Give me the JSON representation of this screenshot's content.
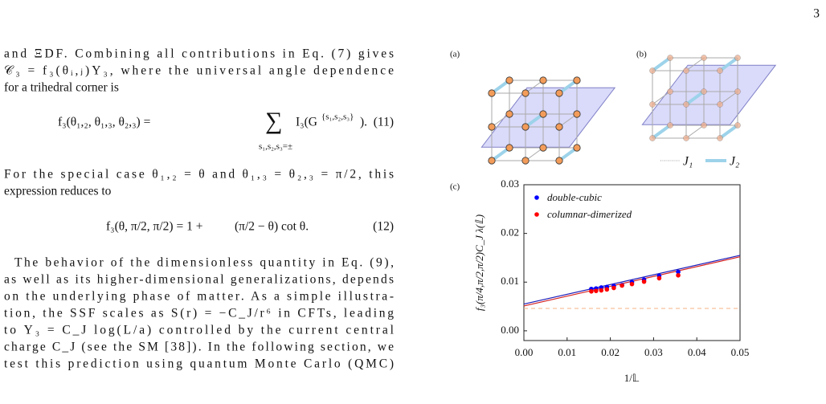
{
  "page_number": "3",
  "text_lines": [
    "and ΞDF. Combining all contributions in Eq. (7) gives",
    "𝒞₃ = f₃(θᵢ,ⱼ)Υ₃, where the universal angle dependence",
    "for a trihedral corner is",
    "For the special case θ₁,₂ = θ and θ₁,₃ = θ₂,₃ = π/2, this",
    "expression reduces to",
    "The behavior of the dimensionless quantity in Eq. (9),",
    "as well as its higher-dimensional generalizations, depends",
    "on the underlying phase of matter. As a simple illustra-",
    "tion, the SSF scales as S(r) = −C_J/r⁶ in CFTs, leading",
    "to Υ₃ = C_J log(L/a) controlled by the current central",
    "charge C_J (see the SM [38]). In the following section, we",
    "test this prediction using quantum Monte Carlo (QMC)"
  ],
  "equations": [
    {
      "lhs": "f₃(θ₁,₂, θ₁,₃, θ₂,₃) =",
      "operator": "∑",
      "under": "s₁,s₂,s₃=±",
      "term": "I₃(G",
      "superscript": "{s₁,s₂,s₃}",
      "tail": ").",
      "number": "(11)"
    },
    {
      "lhs": "f₃(θ, π/2, π/2) = 1 +",
      "term": "(π/2 − θ) cot θ.",
      "number": "(12)"
    }
  ],
  "figure": {
    "panel_labels": [
      "(a)",
      "(b)",
      "(c)"
    ],
    "bond_legend": [
      "J₁",
      "J₂"
    ]
  },
  "chart_data": {
    "type": "scatter",
    "x_label": "1/𝕃",
    "y_label": "f₃(π/4,π/2,π/2)C_J λ(𝕃)",
    "xlim": [
      0,
      0.05
    ],
    "ylim": [
      -0.002,
      0.03
    ],
    "xticks": [
      {
        "value": 0,
        "label": "0.00"
      },
      {
        "value": 0.01,
        "label": "0.01"
      },
      {
        "value": 0.02,
        "label": "0.02"
      },
      {
        "value": 0.03,
        "label": "0.03"
      },
      {
        "value": 0.04,
        "label": "0.04"
      },
      {
        "value": 0.05,
        "label": "0.05"
      }
    ],
    "yticks": [
      {
        "value": 0,
        "label": "0.00"
      },
      {
        "value": 0.01,
        "label": "0.01"
      },
      {
        "value": 0.02,
        "label": "0.02"
      },
      {
        "value": 0.03,
        "label": "0.03"
      }
    ],
    "series": [
      {
        "name": "double-cubic",
        "color": "#0000ff",
        "x": [
          0.0156,
          0.0167,
          0.0179,
          0.0192,
          0.0208,
          0.0227,
          0.025,
          0.0278,
          0.0313,
          0.0357
        ],
        "values": [
          0.0086,
          0.0087,
          0.0089,
          0.009,
          0.0092,
          0.0094,
          0.01,
          0.0105,
          0.0113,
          0.0121
        ]
      },
      {
        "name": "columnar-dimerized",
        "color": "#ff0000",
        "x": [
          0.0156,
          0.0167,
          0.0179,
          0.0192,
          0.0208,
          0.0227,
          0.025,
          0.0278,
          0.0313,
          0.0357
        ],
        "values": [
          0.0081,
          0.0082,
          0.0083,
          0.0085,
          0.0088,
          0.0093,
          0.0096,
          0.0101,
          0.0108,
          0.0114
        ]
      }
    ],
    "fits": [
      {
        "color": "#1c1cb8",
        "x": [
          0,
          0.05
        ],
        "values": [
          0.0055,
          0.0155
        ]
      },
      {
        "color": "#d42020",
        "x": [
          0,
          0.05
        ],
        "values": [
          0.0051,
          0.0152
        ]
      }
    ],
    "reference_line": {
      "value": 0.0046,
      "color": "#f4b183"
    },
    "legend_position": "upper left"
  }
}
